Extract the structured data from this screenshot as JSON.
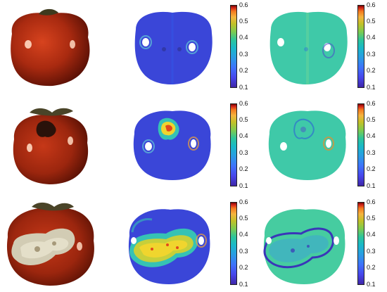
{
  "colorbar_ticks": [
    "0.6",
    "0.5",
    "0.4",
    "0.3",
    "0.2",
    "0.1"
  ],
  "rows": [
    {
      "photo": "tomato-healthy",
      "map1": "map-healthy-a",
      "map2": "map-healthy-b"
    },
    {
      "photo": "tomato-small-defect",
      "map1": "map-small-defect-a",
      "map2": "map-small-defect-b"
    },
    {
      "photo": "tomato-large-defect",
      "map1": "map-large-defect-a",
      "map2": "map-large-defect-b"
    }
  ],
  "colors": {
    "tomato": "#b8280f",
    "map_blue": "#3c44d8",
    "map_green": "#3fd0a5",
    "defect_yellow": "#f0d52e"
  }
}
